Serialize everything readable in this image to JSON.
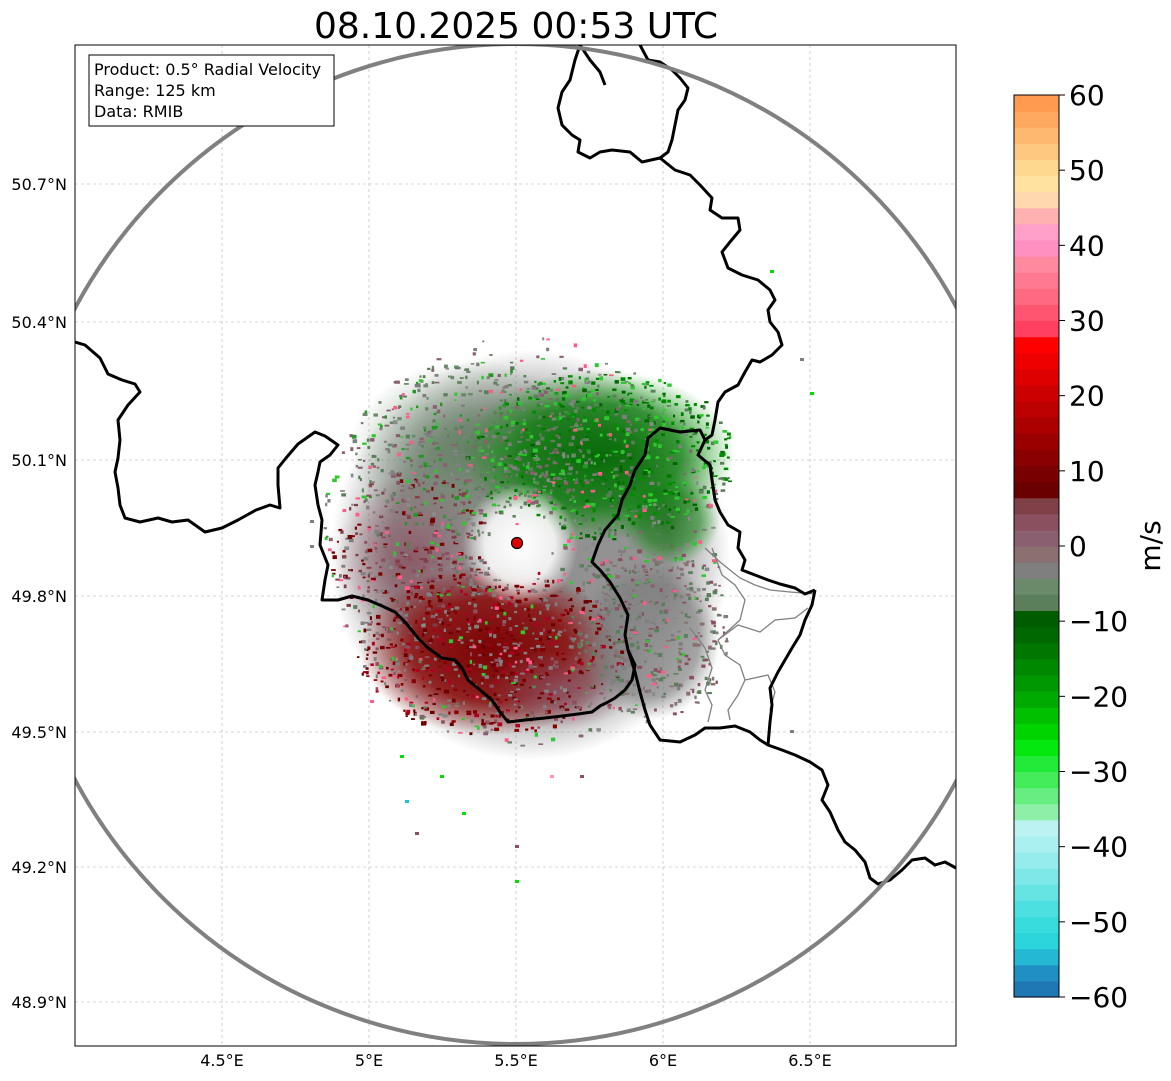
{
  "title": "08.10.2025 00:53 UTC",
  "info": {
    "product": "Product: 0.5° Radial Velocity",
    "range": "Range: 125 km",
    "data": "Data: RMIB"
  },
  "lon_ticks": [
    "4.5°E",
    "5°E",
    "5.5°E",
    "6°E",
    "6.5°E"
  ],
  "lat_ticks": [
    "50.7°N",
    "50.4°N",
    "50.1°N",
    "49.8°N",
    "49.5°N",
    "49.2°N",
    "48.9°N"
  ],
  "colorbar": {
    "label": "m/s",
    "ticks": [
      "60",
      "50",
      "40",
      "30",
      "20",
      "10",
      "0",
      "−10",
      "−20",
      "−30",
      "−40",
      "−50",
      "−60"
    ],
    "min": -60,
    "max": 60,
    "colors": [
      "#1f77b4",
      "#2090c4",
      "#24b8d4",
      "#2ad6dc",
      "#38dcdc",
      "#4ce0e0",
      "#66e4e4",
      "#7ee8e8",
      "#96ecec",
      "#aaf0f0",
      "#bcf2f2",
      "#8ef0a8",
      "#66ee80",
      "#44ec5c",
      "#22ea38",
      "#04e810",
      "#00d400",
      "#00c000",
      "#00aa00",
      "#009800",
      "#008800",
      "#007800",
      "#006800",
      "#005c00",
      "#5a7f5a",
      "#6a8a6a",
      "#7f7f7f",
      "#8a7070",
      "#8a6070",
      "#8a5060",
      "#804048",
      "#6a0000",
      "#780000",
      "#8a0000",
      "#9a0000",
      "#aa0000",
      "#bc0000",
      "#cc0000",
      "#de0000",
      "#ee0000",
      "#ff0000",
      "#ff4060",
      "#ff5570",
      "#ff6a80",
      "#ff7a90",
      "#ff8aa0",
      "#ff90c0",
      "#ffa0c8",
      "#ffb0b0",
      "#ffd8b0",
      "#ffe2a0",
      "#ffd890",
      "#ffc880",
      "#ffb870",
      "#ffa860",
      "#ff9a50"
    ]
  },
  "radar_site": {
    "lon": 5.505,
    "lat": 49.914
  },
  "range_km": 125
}
